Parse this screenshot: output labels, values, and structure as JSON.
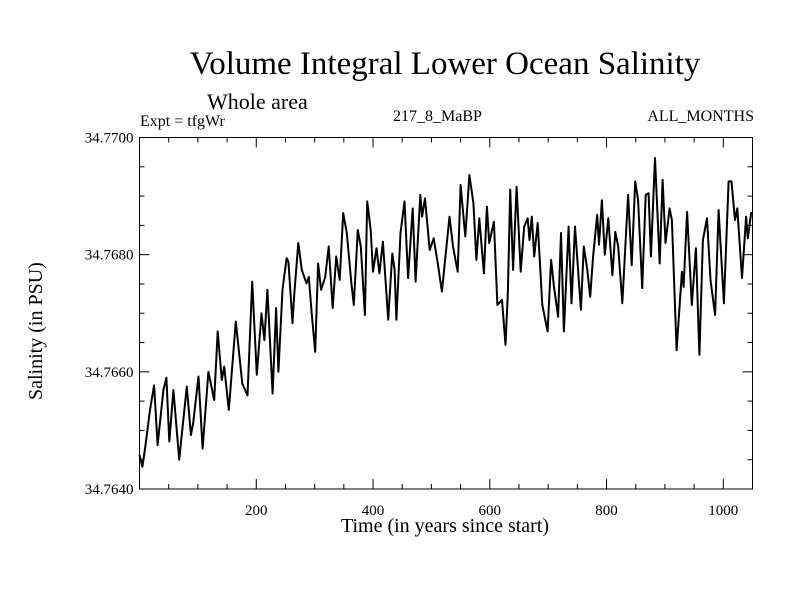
{
  "chart_data": {
    "type": "line",
    "title": "Volume Integral Lower Ocean Salinity",
    "subtitle": "Whole area",
    "annotations": {
      "experiment": "Expt = tfgWr",
      "run": "217_8_MaBP",
      "period": "ALL_MONTHS"
    },
    "xlabel": "Time (in years since start)",
    "ylabel": "Salinity (in PSU)",
    "xlim": [
      0,
      1050
    ],
    "ylim": [
      34.764,
      34.77
    ],
    "x_ticks_major": [
      200,
      400,
      600,
      800,
      1000
    ],
    "x_tick_labels": [
      "200",
      "400",
      "600",
      "800",
      "1000"
    ],
    "x_minor_step": 50,
    "y_ticks_major": [
      34.764,
      34.766,
      34.768,
      34.77
    ],
    "y_tick_labels": [
      "34.7640",
      "34.7660",
      "34.7680",
      "34.7700"
    ],
    "y_minor_step": 0.0005,
    "grid": false,
    "legend": "none",
    "line_color": "#000000",
    "series": [
      {
        "name": "Salinity",
        "x": [
          0,
          5,
          10,
          18,
          25,
          31,
          41,
          46,
          51,
          58,
          68,
          81,
          88,
          92,
          101,
          108,
          118,
          128,
          134,
          141,
          145,
          153,
          165,
          176,
          185,
          193,
          201,
          209,
          214,
          219,
          228,
          234,
          238,
          245,
          252,
          255,
          262,
          265,
          272,
          278,
          286,
          290,
          295,
          301,
          306,
          311,
          318,
          324,
          331,
          337,
          343,
          349,
          355,
          363,
          367,
          374,
          379,
          386,
          390,
          396,
          400,
          406,
          411,
          417,
          426,
          433,
          437,
          440,
          447,
          454,
          460,
          468,
          473,
          481,
          484,
          489,
          497,
          504,
          511,
          518,
          531,
          537,
          545,
          550,
          558,
          565,
          572,
          577,
          582,
          590,
          595,
          599,
          607,
          613,
          621,
          627,
          631,
          635,
          640,
          646,
          653,
          659,
          665,
          668,
          672,
          676,
          682,
          690,
          699,
          705,
          710,
          717,
          722,
          727,
          735,
          740,
          746,
          756,
          761,
          767,
          772,
          777,
          784,
          787,
          792,
          797,
          803,
          810,
          815,
          820,
          827,
          837,
          843,
          849,
          854,
          861,
          867,
          872,
          876,
          883,
          891,
          896,
          901,
          908,
          912,
          920,
          929,
          932,
          938,
          946,
          953,
          959,
          965,
          972,
          978,
          986,
          992,
          1001,
          1009,
          1014,
          1020,
          1024,
          1032,
          1039,
          1042,
          1048
        ],
        "values": [
          34.76458,
          34.76438,
          34.76472,
          34.76535,
          34.76577,
          34.76475,
          34.76569,
          34.7659,
          34.76481,
          34.76569,
          34.7645,
          34.76575,
          34.76492,
          34.76513,
          34.76592,
          34.76469,
          34.766,
          34.76552,
          34.76669,
          34.76586,
          34.76609,
          34.76535,
          34.76686,
          34.7658,
          34.7656,
          34.76754,
          34.76595,
          34.767,
          34.76654,
          34.7674,
          34.76563,
          34.76709,
          34.766,
          34.7674,
          34.76794,
          34.76788,
          34.76683,
          34.76731,
          34.7682,
          34.76774,
          34.76751,
          34.76762,
          34.767,
          34.76634,
          34.76785,
          34.7674,
          34.76762,
          34.76814,
          34.76709,
          34.76797,
          34.76757,
          34.76871,
          34.76837,
          34.76751,
          34.76714,
          34.76842,
          34.76814,
          34.76697,
          34.76891,
          34.76842,
          34.76771,
          34.76811,
          34.76768,
          34.76822,
          34.76689,
          34.76802,
          34.76774,
          34.76689,
          34.76837,
          34.76891,
          34.7676,
          34.76879,
          34.76754,
          34.76902,
          34.76865,
          34.76896,
          34.76808,
          34.76828,
          34.76785,
          34.76737,
          34.76865,
          34.76814,
          34.76771,
          34.76919,
          34.76831,
          34.76936,
          34.76888,
          34.76791,
          34.76862,
          34.76768,
          34.76882,
          34.7682,
          34.76856,
          34.76714,
          34.76723,
          34.76646,
          34.76737,
          34.76911,
          34.76774,
          34.76916,
          34.76771,
          34.76848,
          34.76862,
          34.76825,
          34.76865,
          34.76797,
          34.76854,
          34.76714,
          34.76669,
          34.76791,
          34.76745,
          34.76694,
          34.76837,
          34.76669,
          34.76848,
          34.76717,
          34.76848,
          34.76706,
          34.76814,
          34.76774,
          34.76728,
          34.76797,
          34.76868,
          34.76817,
          34.76893,
          34.768,
          34.76862,
          34.76765,
          34.76839,
          34.76814,
          34.76717,
          34.76902,
          34.76782,
          34.76925,
          34.76893,
          34.76743,
          34.76902,
          34.76905,
          34.76797,
          34.76965,
          34.76785,
          34.76928,
          34.7682,
          34.76879,
          34.76859,
          34.76637,
          34.76771,
          34.76745,
          34.76873,
          34.76714,
          34.76811,
          34.76629,
          34.76825,
          34.76862,
          34.76757,
          34.76697,
          34.76876,
          34.76717,
          34.76925,
          34.76925,
          34.76859,
          34.76879,
          34.7676,
          34.76865,
          34.76828,
          34.76873
        ]
      }
    ]
  }
}
